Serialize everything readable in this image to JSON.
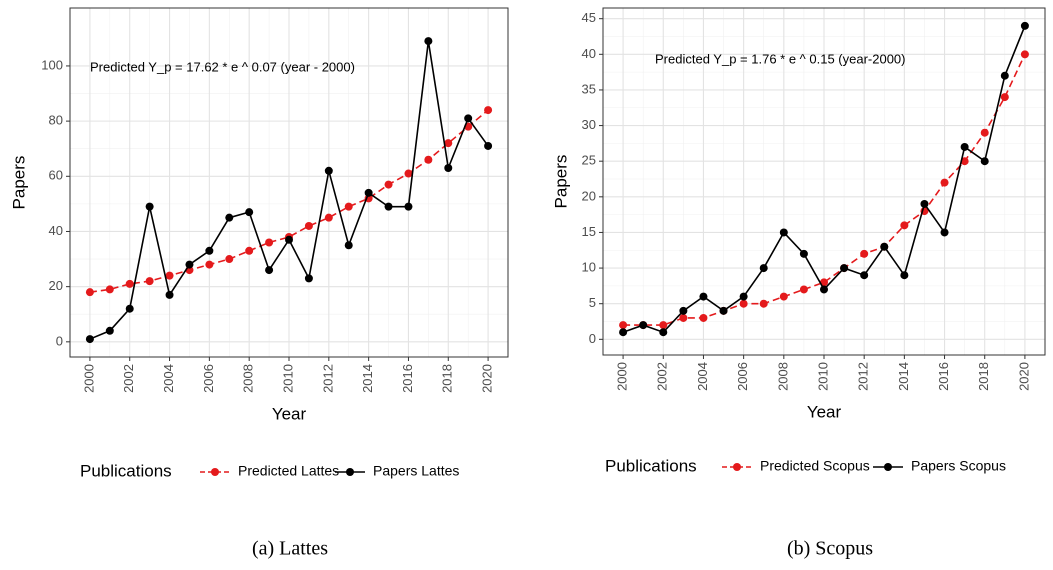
{
  "chart_data": [
    {
      "type": "line",
      "caption": "(a) Lattes",
      "xlabel": "Year",
      "ylabel": "Papers",
      "annotation": "Predicted Y_p = 17.62 * e ^ 0.07 (year - 2000)",
      "legend_title": "Publications",
      "legend": "bottom",
      "grid": true,
      "x": [
        2000,
        2001,
        2002,
        2003,
        2004,
        2005,
        2006,
        2007,
        2008,
        2009,
        2010,
        2011,
        2012,
        2013,
        2014,
        2015,
        2016,
        2017,
        2018,
        2019,
        2020
      ],
      "xlim": [
        1999,
        2021
      ],
      "xticks": [
        2000,
        2002,
        2004,
        2006,
        2008,
        2010,
        2012,
        2014,
        2016,
        2018,
        2020
      ],
      "ylim": [
        -5.5,
        121
      ],
      "yticks": [
        0,
        20,
        40,
        60,
        80,
        100
      ],
      "series": [
        {
          "name": "Predicted Lattes",
          "color": "#e41a1c",
          "dashed": true,
          "values": [
            18,
            19,
            21,
            22,
            24,
            26,
            28,
            30,
            33,
            36,
            38,
            42,
            45,
            49,
            52,
            57,
            61,
            66,
            72,
            78,
            84
          ]
        },
        {
          "name": "Papers Lattes",
          "color": "#000000",
          "dashed": false,
          "values": [
            1,
            4,
            12,
            49,
            17,
            28,
            33,
            45,
            47,
            26,
            37,
            23,
            62,
            35,
            54,
            49,
            49,
            109,
            63,
            81,
            71
          ]
        }
      ]
    },
    {
      "type": "line",
      "caption": "(b) Scopus",
      "xlabel": "Year",
      "ylabel": "Papers",
      "annotation": "Predicted Y_p = 1.76 * e ^ 0.15 (year-2000)",
      "legend_title": "Publications",
      "legend": "bottom",
      "grid": true,
      "x": [
        2000,
        2001,
        2002,
        2003,
        2004,
        2005,
        2006,
        2007,
        2008,
        2009,
        2010,
        2011,
        2012,
        2013,
        2014,
        2015,
        2016,
        2017,
        2018,
        2019,
        2020
      ],
      "xlim": [
        1999,
        2021
      ],
      "xticks": [
        2000,
        2002,
        2004,
        2006,
        2008,
        2010,
        2012,
        2014,
        2016,
        2018,
        2020
      ],
      "ylim": [
        -2.2,
        46.5
      ],
      "yticks": [
        0,
        5,
        10,
        15,
        20,
        25,
        30,
        35,
        40,
        45
      ],
      "series": [
        {
          "name": "Predicted Scopus",
          "color": "#e41a1c",
          "dashed": true,
          "values": [
            2,
            2,
            2,
            3,
            3,
            4,
            5,
            5,
            6,
            7,
            8,
            10,
            12,
            13,
            16,
            18,
            22,
            25,
            29,
            34,
            40
          ]
        },
        {
          "name": "Papers Scopus",
          "color": "#000000",
          "dashed": false,
          "values": [
            1,
            2,
            1,
            4,
            6,
            4,
            6,
            10,
            15,
            12,
            7,
            10,
            9,
            13,
            9,
            19,
            15,
            27,
            25,
            37,
            44
          ]
        }
      ]
    }
  ]
}
